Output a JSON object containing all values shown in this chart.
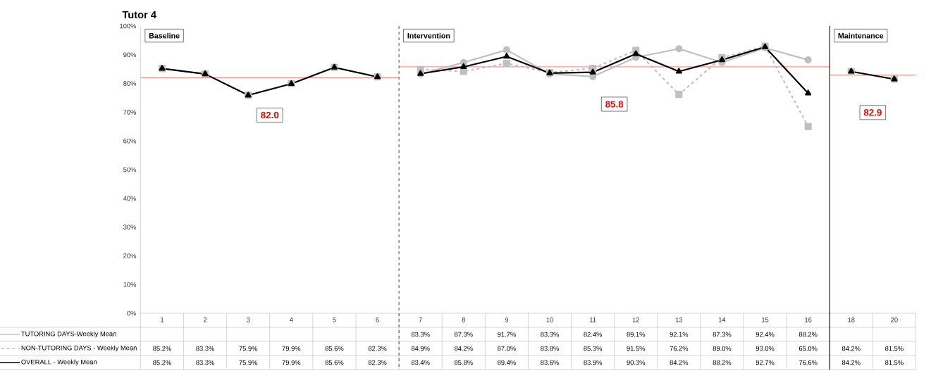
{
  "chart_data": {
    "type": "line",
    "title": "Tutor 4",
    "categories": [
      "1",
      "2",
      "3",
      "4",
      "5",
      "6",
      "7",
      "8",
      "9",
      "10",
      "11",
      "12",
      "13",
      "14",
      "15",
      "16",
      "18",
      "20"
    ],
    "ylim": [
      0,
      100
    ],
    "yticks": [
      {
        "value": 0,
        "label": "0%"
      },
      {
        "value": 10,
        "label": "10%"
      },
      {
        "value": 20,
        "label": "20%"
      },
      {
        "value": 30,
        "label": "30%"
      },
      {
        "value": 40,
        "label": "40%"
      },
      {
        "value": 50,
        "label": "50%"
      },
      {
        "value": 60,
        "label": "60%"
      },
      {
        "value": 70,
        "label": "70%"
      },
      {
        "value": 80,
        "label": "80%"
      },
      {
        "value": 90,
        "label": "90%"
      },
      {
        "value": 100,
        "label": "100%"
      }
    ],
    "series": [
      {
        "name": "TUTORING DAYS-Weekly Mean",
        "color": "#bfbfbf",
        "marker": "circle",
        "line_style": "solid",
        "values": [
          null,
          null,
          null,
          null,
          null,
          null,
          83.3,
          87.3,
          91.7,
          83.3,
          82.4,
          89.1,
          92.1,
          87.3,
          92.4,
          88.2,
          null,
          null
        ],
        "value_labels": [
          null,
          null,
          null,
          null,
          null,
          null,
          "83.3%",
          "87.3%",
          "91.7%",
          "83.3%",
          "82.4%",
          "89.1%",
          "92.1%",
          "87.3%",
          "92.4%",
          "88.2%",
          null,
          null
        ]
      },
      {
        "name": "NON-TUTORING DAYS - Weekly Mean",
        "color": "#bfbfbf",
        "marker": "square",
        "line_style": "dashed",
        "values": [
          85.2,
          83.3,
          75.9,
          79.9,
          85.6,
          82.3,
          84.9,
          84.2,
          87.0,
          83.8,
          85.3,
          91.5,
          76.2,
          89.0,
          93.0,
          65.0,
          84.2,
          81.5
        ],
        "value_labels": [
          "85.2%",
          "83.3%",
          "75.9%",
          "79.9%",
          "85.6%",
          "82.3%",
          "84.9%",
          "84.2%",
          "87.0%",
          "83.8%",
          "85.3%",
          "91.5%",
          "76.2%",
          "89.0%",
          "93.0%",
          "65.0%",
          "84.2%",
          "81.5%"
        ]
      },
      {
        "name": "OVERALL - Weekly Mean",
        "color": "#000000",
        "marker": "triangle",
        "line_style": "solid",
        "values": [
          85.2,
          83.3,
          75.9,
          79.9,
          85.6,
          82.3,
          83.4,
          85.8,
          89.4,
          83.6,
          83.9,
          90.3,
          84.2,
          88.2,
          92.7,
          76.6,
          84.2,
          81.5
        ],
        "value_labels": [
          "85.2%",
          "83.3%",
          "75.9%",
          "79.9%",
          "85.6%",
          "82.3%",
          "83.4%",
          "85.8%",
          "89.4%",
          "83.6%",
          "83.9%",
          "90.3%",
          "84.2%",
          "88.2%",
          "92.7%",
          "76.6%",
          "84.2%",
          "81.5%"
        ]
      }
    ],
    "ref_lines": [
      {
        "axis": "x",
        "value": "7",
        "color": "#595959",
        "line_style": "dashed"
      },
      {
        "axis": "x",
        "value": "18",
        "color": "#000000",
        "line_style": "solid"
      },
      {
        "axis": "y",
        "value": 82.0,
        "label": "82.0",
        "color": "#ff0000"
      },
      {
        "axis": "y",
        "value": 85.8,
        "label": "85.8",
        "color": "#ff0000"
      },
      {
        "axis": "y",
        "value": 82.9,
        "label": "82.9",
        "color": "#ff0000"
      }
    ],
    "annotations": [
      "Baseline",
      "Intervention",
      "Maintenance"
    ],
    "grid": false,
    "legend": "bottom"
  }
}
